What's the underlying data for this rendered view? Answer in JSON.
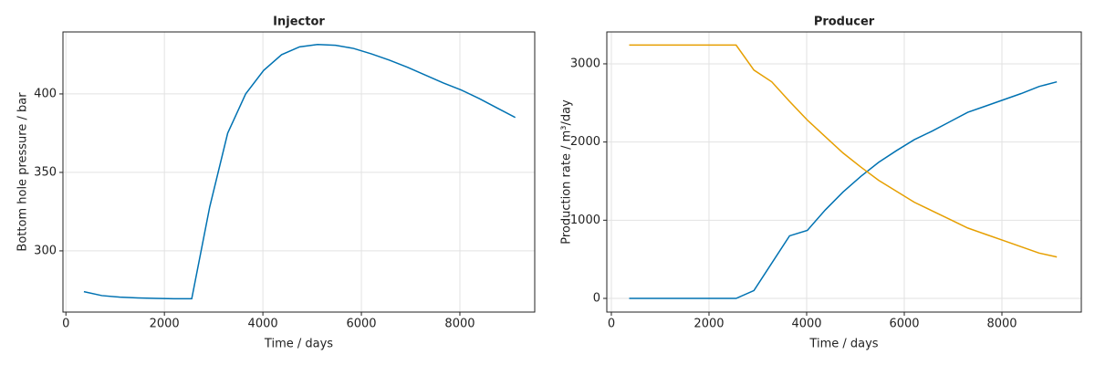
{
  "chart_data": [
    {
      "type": "line",
      "title": "Injector",
      "xlabel": "Time / days",
      "ylabel": "Bottom hole pressure / bar",
      "x": [
        365,
        730,
        1095,
        1460,
        1825,
        2190,
        2555,
        2920,
        3285,
        3650,
        4015,
        4380,
        4745,
        5110,
        5475,
        5840,
        6205,
        6570,
        6935,
        7300,
        7665,
        8030,
        8395,
        8760,
        9125
      ],
      "values": [
        274,
        271.5,
        270.5,
        270,
        269.7,
        269.5,
        269.5,
        328,
        375,
        400,
        415,
        425,
        430,
        431.5,
        431,
        429,
        425.5,
        421.5,
        417,
        412,
        407,
        402.5,
        397,
        391,
        385
      ],
      "color": "#0072b2",
      "xlim": [
        -60,
        9520
      ],
      "ylim": [
        261,
        439.5
      ],
      "xticks": [
        0,
        2000,
        4000,
        6000,
        8000
      ],
      "yticks": [
        300,
        350,
        400
      ],
      "grid": true
    },
    {
      "type": "line",
      "title": "Producer",
      "xlabel": "Time / days",
      "ylabel": "Production rate / m³/day",
      "x": [
        365,
        730,
        1095,
        1460,
        1825,
        2190,
        2555,
        2920,
        3285,
        3650,
        4015,
        4380,
        4745,
        5110,
        5475,
        5840,
        6205,
        6570,
        6935,
        7300,
        7665,
        8030,
        8395,
        8760,
        9125
      ],
      "series": [
        {
          "color": "#0072b2",
          "values": [
            0,
            0,
            0,
            0,
            0,
            0,
            0,
            100,
            450,
            800,
            870,
            1130,
            1360,
            1560,
            1740,
            1890,
            2030,
            2140,
            2260,
            2380,
            2460,
            2540,
            2620,
            2710,
            2770
          ]
        },
        {
          "color": "#e69f00",
          "values": [
            3240,
            3240,
            3240,
            3240,
            3240,
            3240,
            3240,
            2920,
            2770,
            2520,
            2280,
            2070,
            1860,
            1680,
            1510,
            1370,
            1230,
            1120,
            1010,
            900,
            820,
            740,
            660,
            580,
            530
          ]
        }
      ],
      "xlim": [
        -93,
        9626
      ],
      "ylim": [
        -175,
        3408
      ],
      "xticks": [
        0,
        2000,
        4000,
        6000,
        8000
      ],
      "yticks": [
        0,
        1000,
        2000,
        3000
      ],
      "grid": true
    }
  ]
}
